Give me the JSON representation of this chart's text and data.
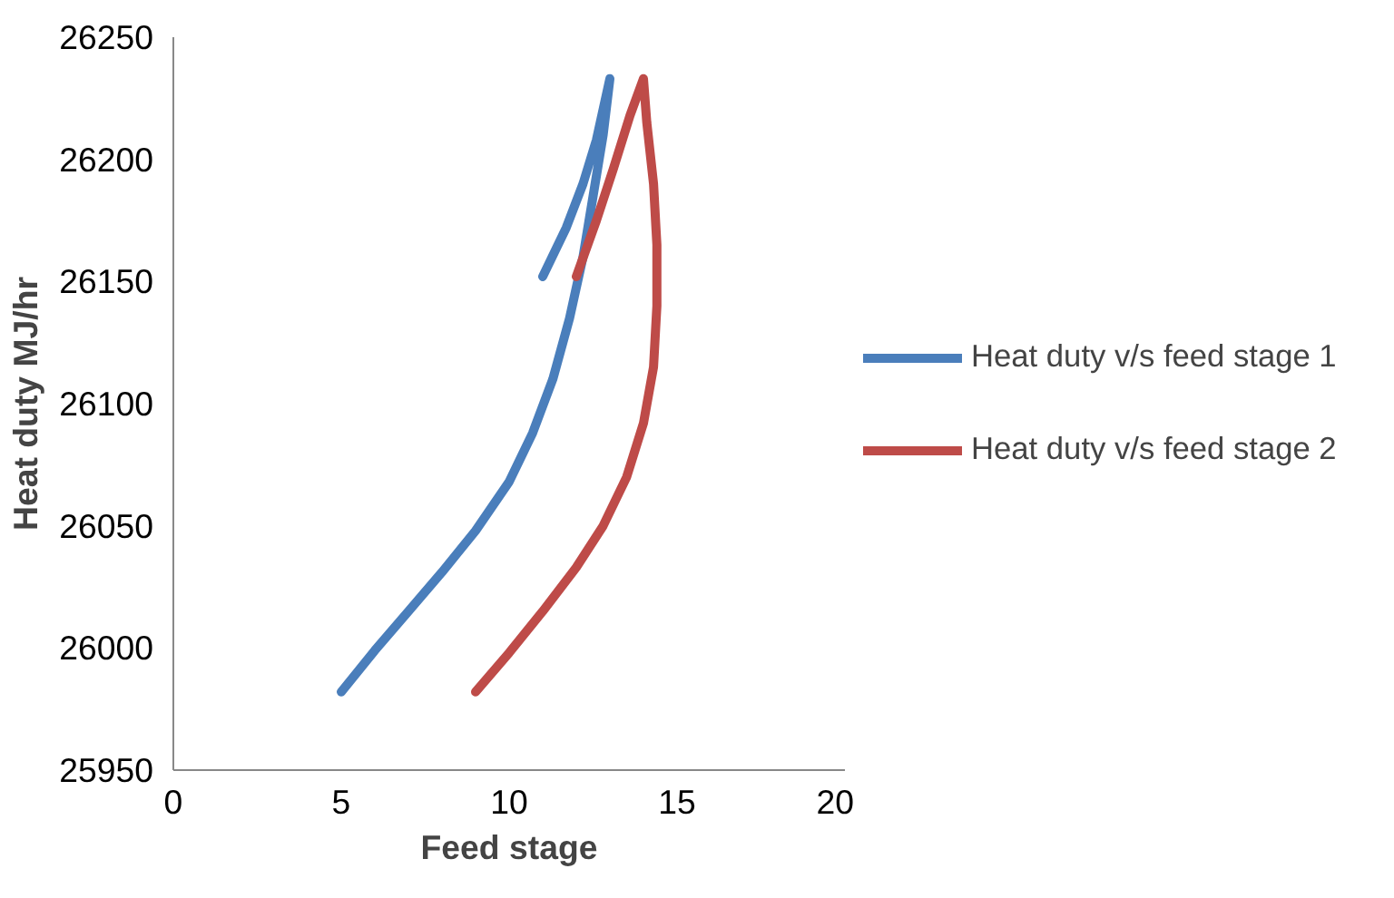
{
  "chart_data": {
    "type": "line",
    "xlabel": "Feed stage",
    "ylabel": "Heat duty MJ/hr",
    "xlim": [
      0,
      20
    ],
    "xticks": [
      0,
      5,
      10,
      15,
      20
    ],
    "ylim": [
      25950,
      26250
    ],
    "yticks": [
      25950,
      26000,
      26050,
      26100,
      26150,
      26200,
      26250
    ],
    "grid": false,
    "legend": "right",
    "marker": "none",
    "line_style": "solid",
    "series": [
      {
        "name": "Heat duty v/s feed stage 1",
        "color": "#4a7ebb",
        "x": [
          5,
          6,
          7,
          8,
          9,
          10,
          10.7,
          11.3,
          11.8,
          12.2,
          12.5,
          12.8,
          13,
          12.6,
          12.2,
          11.7,
          11
        ],
        "values": [
          25982,
          25999,
          26015,
          26031,
          26048,
          26068,
          26088,
          26110,
          26135,
          26160,
          26185,
          26210,
          26233,
          26208,
          26190,
          26172,
          26152
        ]
      },
      {
        "name": "Heat duty v/s feed stage 2",
        "color": "#be4b48",
        "x": [
          9,
          10,
          11,
          12,
          12.8,
          13.5,
          14,
          14.3,
          14.4,
          14.4,
          14.3,
          14.1,
          14,
          13.6,
          13.1,
          12.6,
          12
        ],
        "values": [
          25982,
          25998,
          26015,
          26033,
          26050,
          26070,
          26092,
          26115,
          26140,
          26165,
          26190,
          26215,
          26233,
          26218,
          26196,
          26175,
          26152
        ]
      }
    ]
  }
}
